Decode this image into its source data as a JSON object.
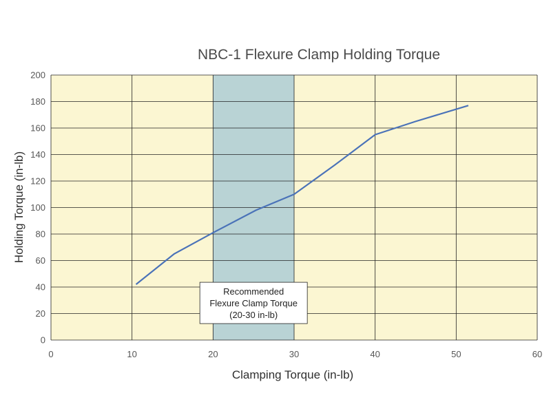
{
  "chart_data": {
    "type": "line",
    "title": "NBC-1 Flexure Clamp Holding Torque",
    "xlabel": "Clamping Torque (in-lb)",
    "ylabel": "Holding Torque (in-lb)",
    "xlim": [
      0,
      60
    ],
    "ylim": [
      0,
      200
    ],
    "x_ticks": [
      0,
      10,
      20,
      30,
      40,
      50,
      60
    ],
    "y_ticks": [
      0,
      20,
      40,
      60,
      80,
      100,
      120,
      140,
      160,
      180,
      200
    ],
    "grid": true,
    "series": [
      {
        "x": [
          10.5,
          15.2,
          20,
          25.3,
          30,
          35,
          40,
          45,
          51.5
        ],
        "y": [
          42,
          65,
          81,
          98,
          110,
          132,
          155,
          165,
          177
        ]
      }
    ],
    "highlight_band": {
      "x_start": 20,
      "x_end": 30
    },
    "annotation": {
      "lines": [
        "Recommended",
        "Flexure Clamp Torque",
        "(20-30 in-lb)"
      ],
      "x": 25,
      "y": 28
    },
    "colors": {
      "plot_background": "#fbf6d2",
      "band": "#b9d3d5",
      "line": "#4a72b8",
      "grid": "#222222"
    }
  }
}
